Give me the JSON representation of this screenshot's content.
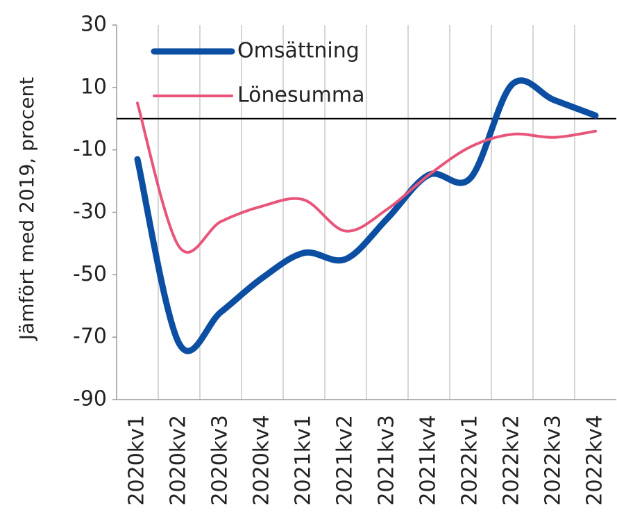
{
  "chart_data": {
    "type": "line",
    "y_label": "Jämfört med 2019, procent",
    "categories": [
      "2020kv1",
      "2020kv2",
      "2020kv3",
      "2020kv4",
      "2021kv1",
      "2021kv2",
      "2021kv3",
      "2021kv4",
      "2022kv1",
      "2022kv2",
      "2022kv3",
      "2022kv4"
    ],
    "series": [
      {
        "name": "Omsättning",
        "color": "#0b4ea2",
        "values": [
          -13,
          -72,
          -62,
          -51,
          -43,
          -45,
          -32,
          -18,
          -19,
          11,
          6,
          1
        ]
      },
      {
        "name": "Lönesumma",
        "color": "#e8557a",
        "values": [
          5,
          -41,
          -33,
          -28,
          -26,
          -36,
          -29,
          -18,
          -9,
          -5,
          -6,
          -4
        ]
      }
    ],
    "ylim": [
      -90,
      30
    ],
    "yticks": [
      30,
      10,
      -10,
      -30,
      -50,
      -70,
      -90
    ],
    "legend": "upper-left"
  }
}
